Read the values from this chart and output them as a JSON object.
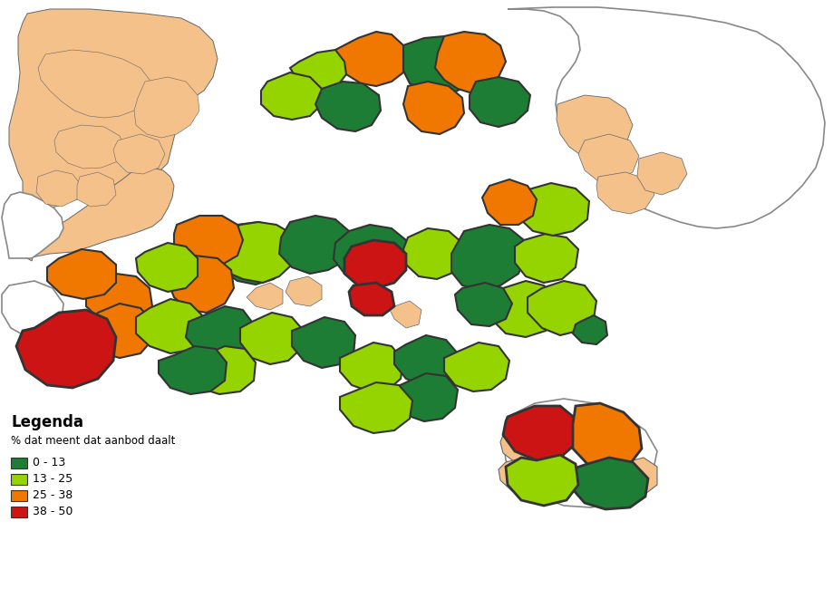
{
  "legend_title": "Legenda",
  "legend_subtitle": "% dat meent dat aanbod daalt",
  "legend_items": [
    {
      "label": "0 - 13",
      "color": "#1e7d34"
    },
    {
      "label": "13 - 25",
      "color": "#96d400"
    },
    {
      "label": "25 - 38",
      "color": "#f07800"
    },
    {
      "label": "38 - 50",
      "color": "#cc1414"
    }
  ],
  "bg": "#ffffff",
  "figsize": [
    9.19,
    6.5
  ],
  "dpi": 100,
  "C_GREEN": "#1e7d34",
  "C_LIME": "#96d400",
  "C_ORANGE": "#f07800",
  "C_RED": "#cc1414",
  "C_PEACH": "#f5c18a",
  "C_WHITE": "#ffffff",
  "C_EDGE": "#333333",
  "C_EDGE2": "#666666"
}
